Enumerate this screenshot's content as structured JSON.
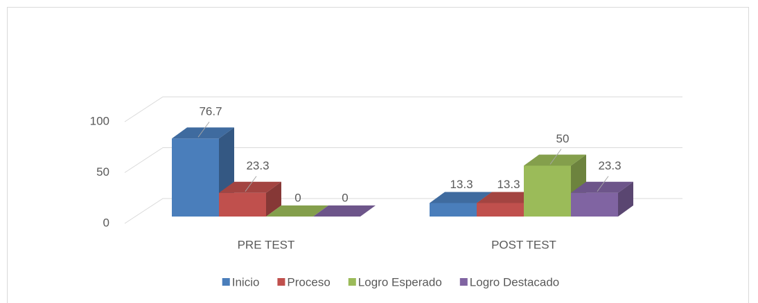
{
  "chart_data": {
    "type": "bar3d",
    "categories": [
      "PRE TEST",
      "POST TEST"
    ],
    "series": [
      {
        "name": "Inicio",
        "color": "#4a7ebb",
        "values": [
          76.7,
          13.3
        ]
      },
      {
        "name": "Proceso",
        "color": "#c0504d",
        "values": [
          23.3,
          13.3
        ]
      },
      {
        "name": "Logro Esperado",
        "color": "#9bbb59",
        "values": [
          0,
          50
        ]
      },
      {
        "name": "Logro Destacado",
        "color": "#8064a2",
        "values": [
          0,
          23.3
        ]
      }
    ],
    "ylim": [
      0,
      100
    ],
    "yticks": [
      0,
      50,
      100
    ],
    "grid": true,
    "legend": "bottom"
  }
}
